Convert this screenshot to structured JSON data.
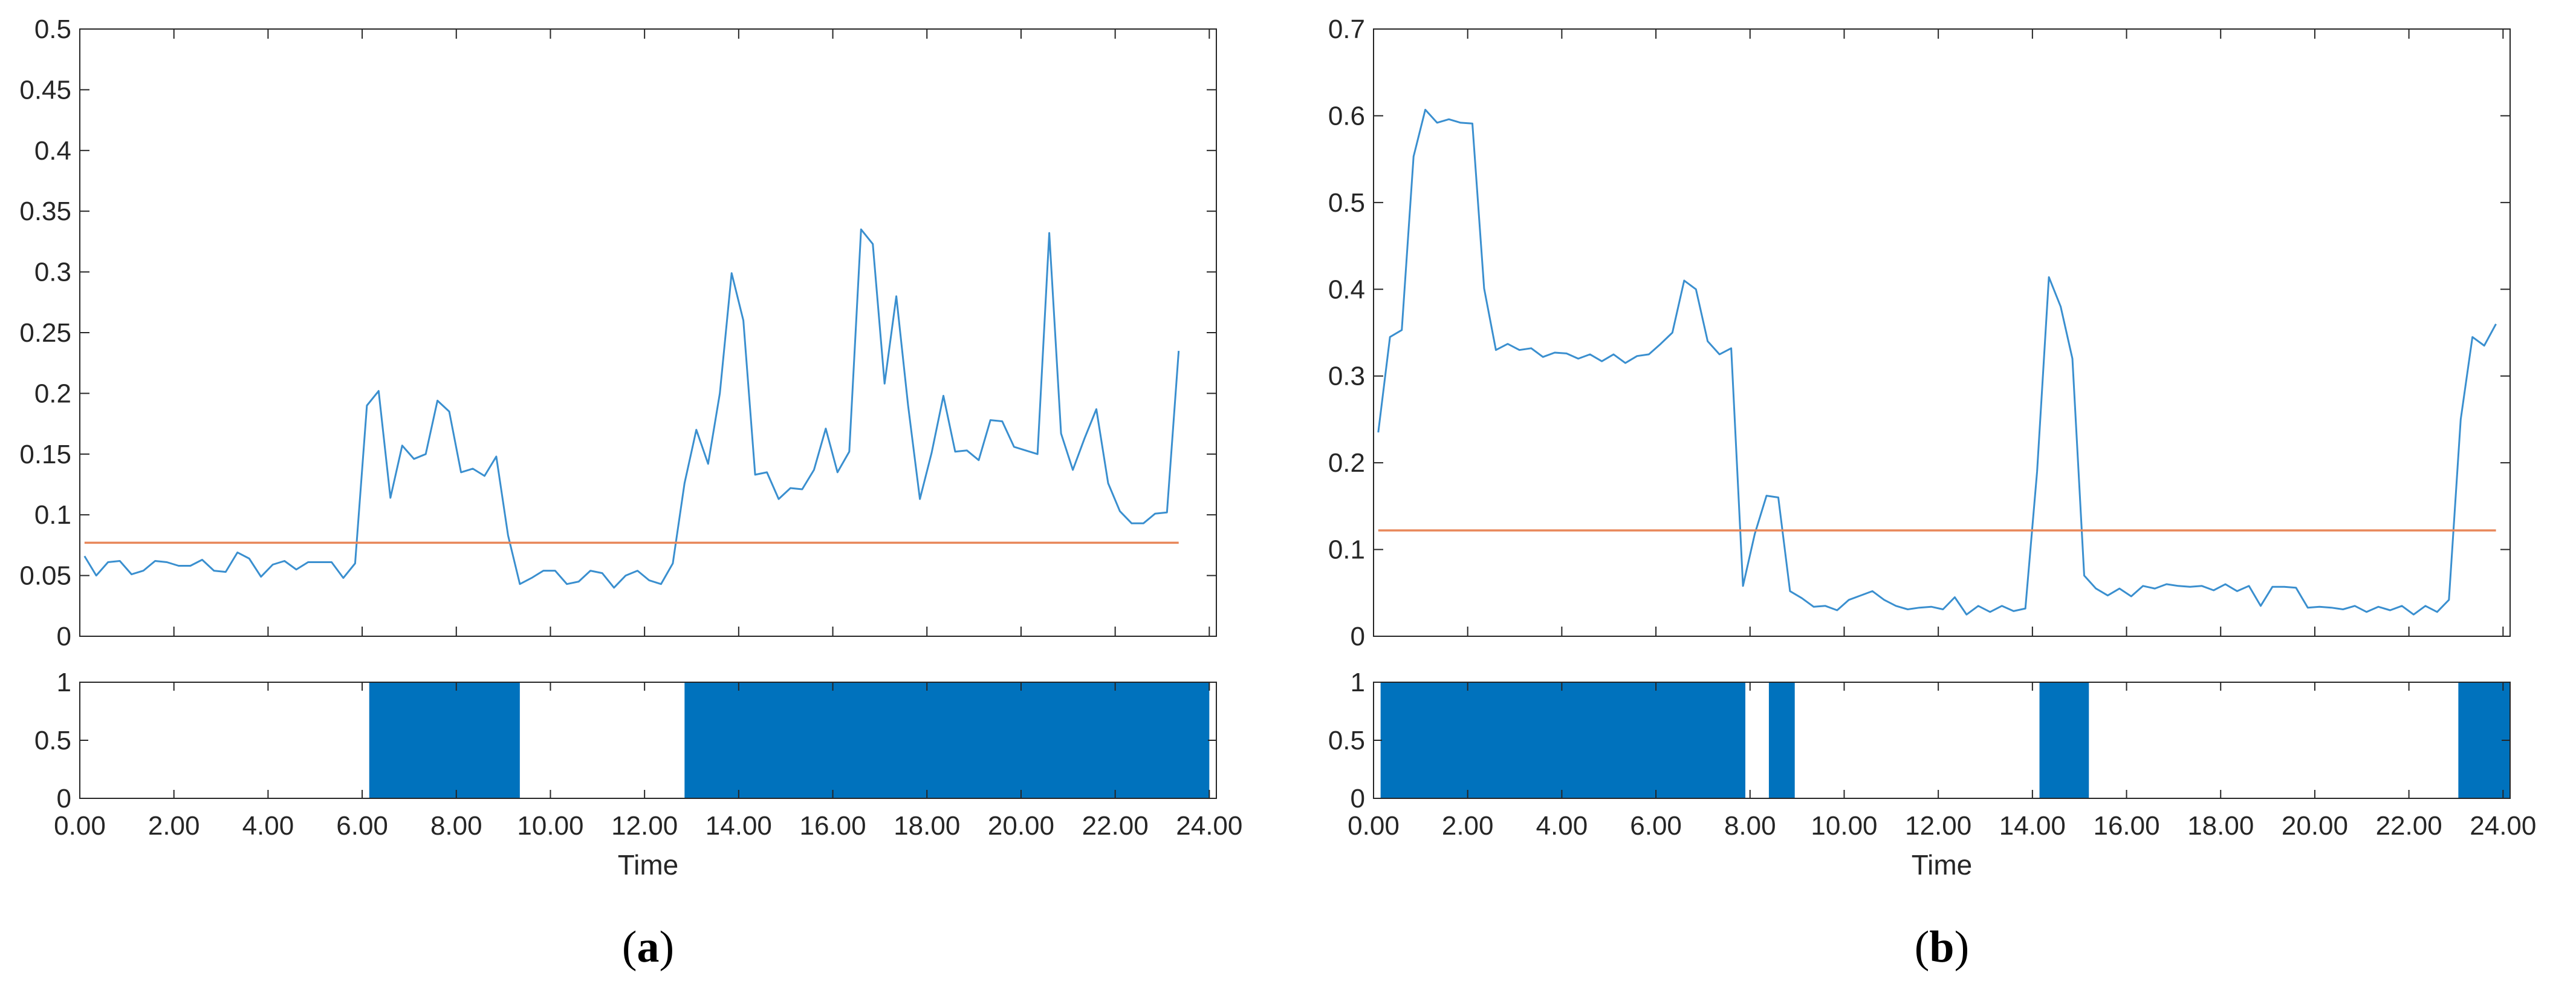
{
  "colors": {
    "series_line": "#3a8fcf",
    "threshold_line": "#e8875a",
    "state_fill": "#0072bd",
    "axis": "#262626"
  },
  "chart_data": [
    {
      "type": "line",
      "panel": "a",
      "panel_label": {
        "open": "(",
        "letter": "a",
        "close": ")"
      },
      "xlabel": "Time",
      "xlim": [
        0,
        24.15
      ],
      "x_ticks": [
        "0.00",
        "2.00",
        "4.00",
        "6.00",
        "8.00",
        "10.00",
        "12.00",
        "14.00",
        "16.00",
        "18.00",
        "20.00",
        "22.00",
        "24.00"
      ],
      "ylim": [
        0,
        0.5
      ],
      "y_ticks": [
        "0",
        "0.05",
        "0.1",
        "0.15",
        "0.2",
        "0.25",
        "0.3",
        "0.35",
        "0.4",
        "0.45",
        "0.5"
      ],
      "series": [
        {
          "x": [
            0.1,
            0.35,
            0.6,
            0.85,
            1.1,
            1.35,
            1.6,
            1.85,
            2.1,
            2.35,
            2.6,
            2.85,
            3.1,
            3.35,
            3.6,
            3.85,
            4.1,
            4.35,
            4.6,
            4.85,
            5.1,
            5.35,
            5.6,
            5.85,
            6.1,
            6.35,
            6.6,
            6.85,
            7.1,
            7.35,
            7.6,
            7.85,
            8.1,
            8.35,
            8.6,
            8.85,
            9.1,
            9.35,
            9.6,
            9.85,
            10.1,
            10.35,
            10.6,
            10.85,
            11.1,
            11.35,
            11.6,
            11.85,
            12.1,
            12.35,
            12.6,
            12.85,
            13.1,
            13.35,
            13.6,
            13.85,
            14.1,
            14.35,
            14.6,
            14.85,
            15.1,
            15.35,
            15.6,
            15.85,
            16.1,
            16.35,
            16.6,
            16.85,
            17.1,
            17.35,
            17.6,
            17.85,
            18.1,
            18.35,
            18.6,
            18.85,
            19.1,
            19.35,
            19.6,
            19.85,
            20.1,
            20.35,
            20.6,
            20.85,
            21.1,
            21.35,
            21.6,
            21.85,
            22.1,
            22.35,
            22.6,
            22.85,
            23.1,
            23.35
          ],
          "y": [
            0.066,
            0.05,
            0.061,
            0.062,
            0.051,
            0.054,
            0.062,
            0.061,
            0.058,
            0.058,
            0.063,
            0.054,
            0.053,
            0.069,
            0.064,
            0.049,
            0.059,
            0.062,
            0.055,
            0.061,
            0.061,
            0.061,
            0.048,
            0.06,
            0.19,
            0.202,
            0.114,
            0.157,
            0.146,
            0.15,
            0.194,
            0.185,
            0.135,
            0.138,
            0.132,
            0.148,
            0.083,
            0.043,
            0.048,
            0.054,
            0.054,
            0.043,
            0.045,
            0.054,
            0.052,
            0.04,
            0.05,
            0.054,
            0.046,
            0.043,
            0.06,
            0.126,
            0.17,
            0.142,
            0.2,
            0.299,
            0.26,
            0.133,
            0.135,
            0.113,
            0.122,
            0.121,
            0.137,
            0.171,
            0.135,
            0.152,
            0.335,
            0.323,
            0.208,
            0.28,
            0.19,
            0.113,
            0.151,
            0.198,
            0.152,
            0.153,
            0.145,
            0.178,
            0.177,
            0.156,
            0.153,
            0.15,
            0.332,
            0.167,
            0.137,
            0.163,
            0.187,
            0.126,
            0.103,
            0.093,
            0.093,
            0.101,
            0.102,
            0.235
          ]
        },
        {
          "x": [
            0.1,
            23.35
          ],
          "y": [
            0.077,
            0.077
          ]
        }
      ],
      "state_chart": {
        "ylim": [
          0,
          1
        ],
        "y_ticks": [
          "0",
          "0.5",
          "1"
        ],
        "segments": [
          [
            6.15,
            9.35
          ],
          [
            12.85,
            24.0
          ]
        ]
      }
    },
    {
      "type": "line",
      "panel": "b",
      "panel_label": {
        "open": "(",
        "letter": "b",
        "close": ")"
      },
      "xlabel": "Time",
      "xlim": [
        0,
        24.15
      ],
      "x_ticks": [
        "0.00",
        "2.00",
        "4.00",
        "6.00",
        "8.00",
        "10.00",
        "12.00",
        "14.00",
        "16.00",
        "18.00",
        "20.00",
        "22.00",
        "24.00"
      ],
      "ylim": [
        0,
        0.7
      ],
      "y_ticks": [
        "0",
        "0.1",
        "0.2",
        "0.3",
        "0.4",
        "0.5",
        "0.6",
        "0.7"
      ],
      "series": [
        {
          "x": [
            0.1,
            0.35,
            0.6,
            0.85,
            1.1,
            1.35,
            1.6,
            1.85,
            2.1,
            2.35,
            2.6,
            2.85,
            3.1,
            3.35,
            3.6,
            3.85,
            4.1,
            4.35,
            4.6,
            4.85,
            5.1,
            5.35,
            5.6,
            5.85,
            6.1,
            6.35,
            6.6,
            6.85,
            7.1,
            7.35,
            7.6,
            7.85,
            8.1,
            8.35,
            8.6,
            8.85,
            9.1,
            9.35,
            9.6,
            9.85,
            10.1,
            10.35,
            10.6,
            10.85,
            11.1,
            11.35,
            11.6,
            11.85,
            12.1,
            12.35,
            12.6,
            12.85,
            13.1,
            13.35,
            13.6,
            13.85,
            14.1,
            14.35,
            14.6,
            14.85,
            15.1,
            15.35,
            15.6,
            15.85,
            16.1,
            16.35,
            16.6,
            16.85,
            17.1,
            17.35,
            17.6,
            17.85,
            18.1,
            18.35,
            18.6,
            18.85,
            19.1,
            19.35,
            19.6,
            19.85,
            20.1,
            20.35,
            20.6,
            20.85,
            21.1,
            21.35,
            21.6,
            21.85,
            22.1,
            22.35,
            22.6,
            22.85,
            23.1,
            23.35,
            23.6,
            23.85
          ],
          "y": [
            0.235,
            0.345,
            0.353,
            0.553,
            0.607,
            0.592,
            0.596,
            0.592,
            0.591,
            0.401,
            0.33,
            0.337,
            0.33,
            0.332,
            0.322,
            0.327,
            0.326,
            0.32,
            0.325,
            0.317,
            0.325,
            0.315,
            0.323,
            0.325,
            0.337,
            0.35,
            0.41,
            0.4,
            0.34,
            0.325,
            0.332,
            0.058,
            0.118,
            0.162,
            0.16,
            0.052,
            0.044,
            0.034,
            0.035,
            0.03,
            0.042,
            0.047,
            0.052,
            0.042,
            0.035,
            0.031,
            0.033,
            0.034,
            0.031,
            0.045,
            0.025,
            0.035,
            0.028,
            0.035,
            0.029,
            0.032,
            0.19,
            0.414,
            0.38,
            0.32,
            0.07,
            0.055,
            0.047,
            0.055,
            0.046,
            0.058,
            0.055,
            0.06,
            0.058,
            0.057,
            0.058,
            0.053,
            0.06,
            0.052,
            0.058,
            0.035,
            0.057,
            0.057,
            0.056,
            0.033,
            0.034,
            0.033,
            0.031,
            0.035,
            0.028,
            0.034,
            0.03,
            0.035,
            0.025,
            0.035,
            0.028,
            0.042,
            0.25,
            0.345,
            0.335,
            0.36
          ]
        },
        {
          "x": [
            0.1,
            23.85
          ],
          "y": [
            0.122,
            0.122
          ]
        }
      ],
      "state_chart": {
        "ylim": [
          0,
          1
        ],
        "y_ticks": [
          "0",
          "0.5",
          "1"
        ],
        "segments": [
          [
            0.15,
            7.9
          ],
          [
            8.4,
            8.95
          ],
          [
            14.15,
            15.2
          ],
          [
            23.05,
            24.15
          ]
        ]
      }
    }
  ]
}
